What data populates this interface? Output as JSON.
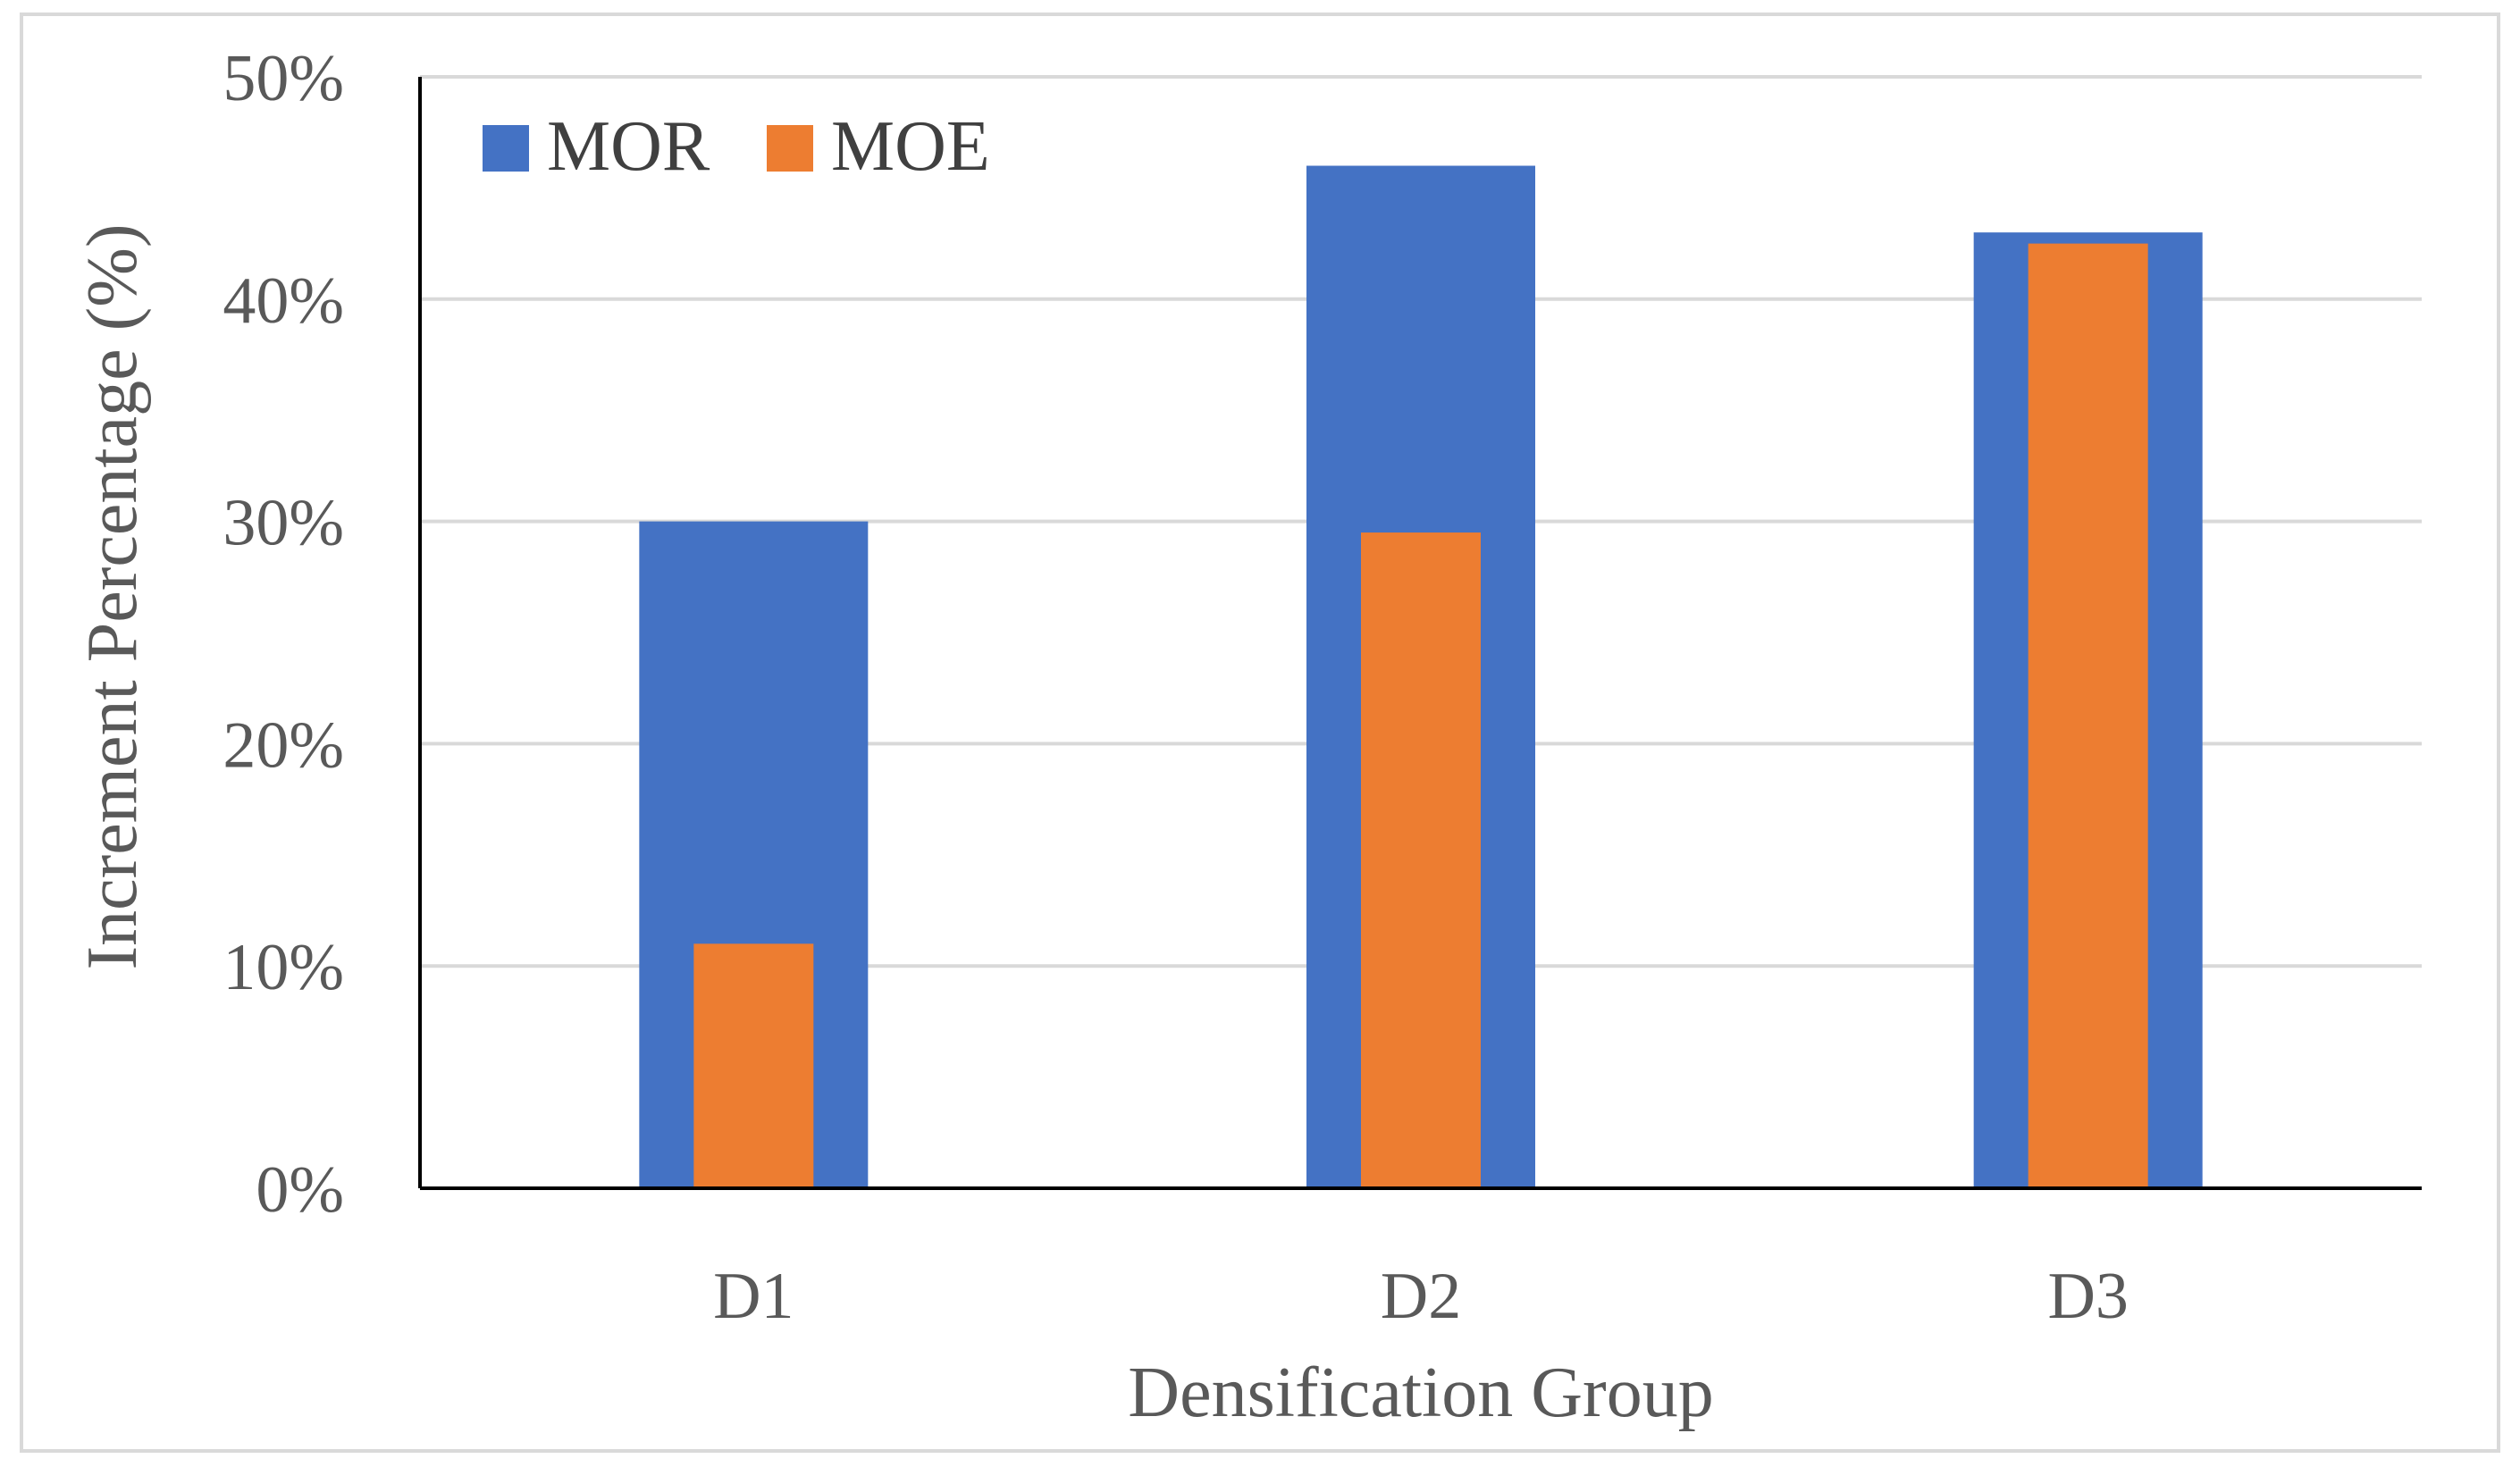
{
  "chart_data": {
    "type": "bar",
    "title": "",
    "categories": [
      "D1",
      "D2",
      "D3"
    ],
    "series": [
      {
        "name": "MOR",
        "color": "#4472C4",
        "values": [
          30,
          46,
          43
        ]
      },
      {
        "name": "MOE",
        "color": "#ED7D31",
        "values": [
          11,
          29.5,
          42.5
        ]
      }
    ],
    "xlabel": "Densification Group",
    "ylabel": "Increment Percentage (%)",
    "ylim": [
      0,
      50
    ],
    "yticks": [
      0,
      10,
      20,
      30,
      40,
      50
    ],
    "ytick_labels": [
      "0%",
      "10%",
      "20%",
      "30%",
      "40%",
      "50%"
    ],
    "grid": true,
    "legend_position": "top-left",
    "bar_style": "overlapped"
  }
}
